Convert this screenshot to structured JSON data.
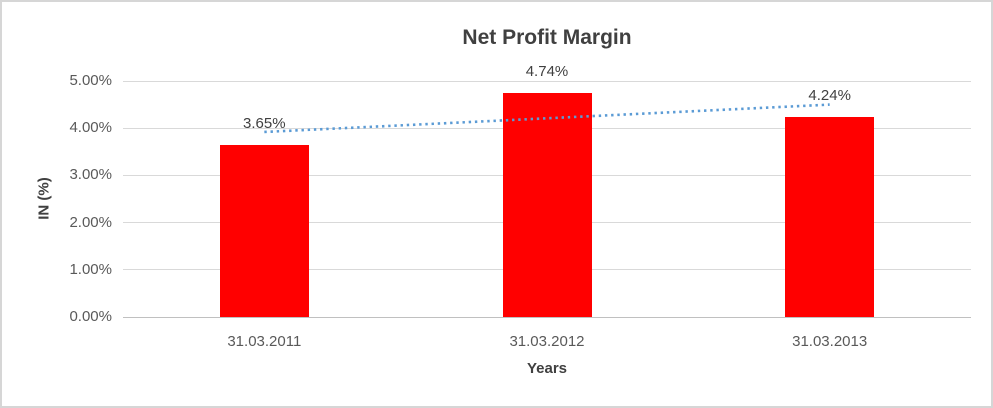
{
  "frame": {
    "background": "#ffffff",
    "border_color": "#d6d6d6"
  },
  "chart_data": {
    "type": "bar",
    "title": "Net Profit Margin",
    "xlabel": "Years",
    "ylabel": "IN (%)",
    "categories": [
      "31.03.2011",
      "31.03.2012",
      "31.03.2013"
    ],
    "values": [
      3.65,
      4.74,
      4.24
    ],
    "data_labels": [
      "3.65%",
      "4.74%",
      "4.24%"
    ],
    "yticks": [
      {
        "label": "0.00%",
        "value": 0
      },
      {
        "label": "1.00%",
        "value": 1
      },
      {
        "label": "2.00%",
        "value": 2
      },
      {
        "label": "3.00%",
        "value": 3
      },
      {
        "label": "4.00%",
        "value": 4
      },
      {
        "label": "5.00%",
        "value": 5
      }
    ],
    "ylim": [
      0,
      5
    ],
    "grid": true,
    "legend": "none",
    "bar_color": "#ff0000",
    "title_color": "#404040",
    "tick_label_color": "#595959",
    "gridline_color": "#d9d9d9",
    "trendline": {
      "type": "linear",
      "style": "dotted",
      "color": "#5b9bd5",
      "start_value": 3.92,
      "end_value": 4.5
    }
  }
}
